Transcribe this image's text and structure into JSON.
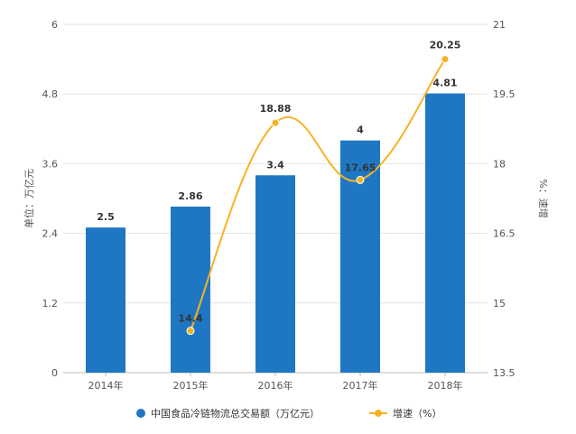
{
  "chart_data": {
    "type": "bar",
    "categories": [
      "2014年",
      "2015年",
      "2016年",
      "2017年",
      "2018年"
    ],
    "series": [
      {
        "name": "中国食品冷链物流总交易额（万亿元）",
        "type": "bar",
        "axis": "left",
        "color": "#1f77c4",
        "values": [
          2.5,
          2.86,
          3.4,
          4,
          4.81
        ],
        "labels": [
          "2.5",
          "2.86",
          "3.4",
          "4",
          "4.81"
        ]
      },
      {
        "name": "增速（%）",
        "type": "line",
        "axis": "right",
        "color": "#f5b324",
        "smooth": true,
        "values": [
          null,
          14.4,
          18.88,
          17.65,
          20.25
        ],
        "labels": [
          "",
          "14.4",
          "18.88",
          "17.65",
          "20.25"
        ]
      }
    ],
    "ylabel": "单位：万亿元",
    "ylabel_right": "%：速增",
    "ylim": [
      0,
      6
    ],
    "ylim_right": [
      13.5,
      21
    ],
    "yticks": [
      "0",
      "1.2",
      "2.4",
      "3.6",
      "4.8",
      "6"
    ],
    "yticks_right": [
      "13.5",
      "15",
      "16.5",
      "18",
      "19.5",
      "21"
    ],
    "grid": true,
    "legend_position": "bottom"
  }
}
